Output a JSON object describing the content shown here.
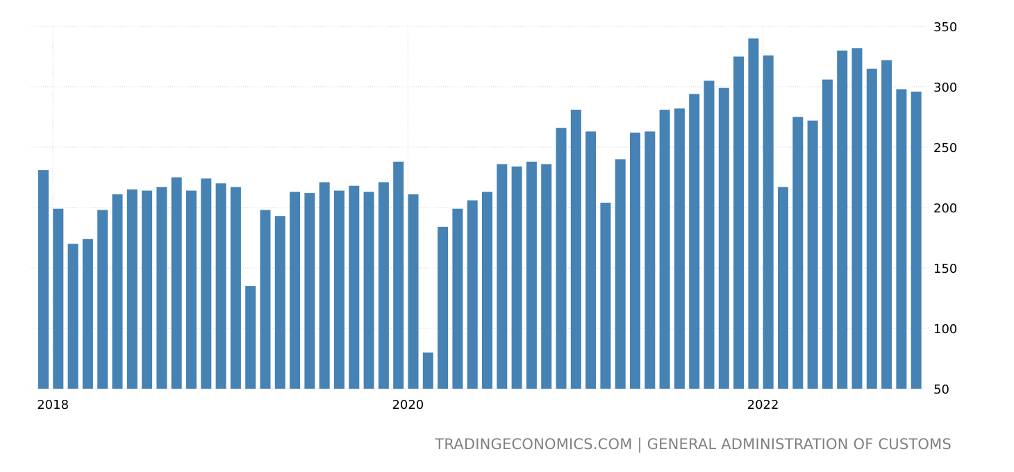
{
  "chart_data": {
    "type": "bar",
    "title": "",
    "xlabel": "",
    "ylabel": "",
    "ylim": [
      50,
      350
    ],
    "yticks": [
      50,
      100,
      150,
      200,
      250,
      300,
      350
    ],
    "y_axis_side": "right",
    "x_tick_labels": [
      "2018",
      "2020",
      "2022"
    ],
    "grid": true,
    "bar_color": "#4682b4",
    "categories": [
      "2017-12",
      "2018-01",
      "2018-02",
      "2018-03",
      "2018-04",
      "2018-05",
      "2018-06",
      "2018-07",
      "2018-08",
      "2018-09",
      "2018-10",
      "2018-11",
      "2018-12",
      "2019-01",
      "2019-02",
      "2019-03",
      "2019-04",
      "2019-05",
      "2019-06",
      "2019-07",
      "2019-08",
      "2019-09",
      "2019-10",
      "2019-11",
      "2019-12",
      "2020-01",
      "2020-02",
      "2020-03",
      "2020-04",
      "2020-05",
      "2020-06",
      "2020-07",
      "2020-08",
      "2020-09",
      "2020-10",
      "2020-11",
      "2020-12",
      "2021-01",
      "2021-02",
      "2021-03",
      "2021-04",
      "2021-05",
      "2021-06",
      "2021-07",
      "2021-08",
      "2021-09",
      "2021-10",
      "2021-11",
      "2021-12",
      "2022-01",
      "2022-02",
      "2022-03",
      "2022-04",
      "2022-05",
      "2022-06",
      "2022-07",
      "2022-08",
      "2022-09",
      "2022-10",
      "2022-11"
    ],
    "values": [
      231,
      199,
      170,
      174,
      198,
      211,
      215,
      214,
      217,
      225,
      214,
      224,
      220,
      217,
      135,
      198,
      193,
      213,
      212,
      221,
      214,
      218,
      213,
      221,
      238,
      211,
      80,
      184,
      199,
      206,
      213,
      236,
      234,
      238,
      236,
      266,
      281,
      263,
      204,
      240,
      262,
      263,
      281,
      282,
      294,
      305,
      299,
      325,
      340,
      326,
      217,
      275,
      272,
      306,
      330,
      332,
      315,
      322,
      298,
      296
    ]
  },
  "source": {
    "text": "TRADINGECONOMICS.COM | GENERAL ADMINISTRATION OF CUSTOMS"
  }
}
